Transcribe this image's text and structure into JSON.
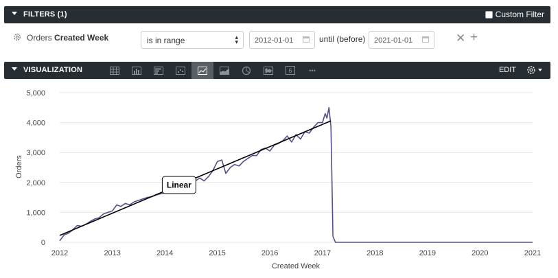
{
  "filters_bar": {
    "title": "FILTERS (1)",
    "custom_filter_label": "Custom Filter"
  },
  "filter": {
    "field_prefix": "Orders",
    "field_name": "Created Week",
    "operator": "is in range",
    "start_date": "2012-01-01",
    "until_label": "until (before)",
    "end_date": "2021-01-01"
  },
  "viz_bar": {
    "title": "VISUALIZATION",
    "edit_label": "EDIT",
    "icons": [
      "table-icon",
      "column-chart-icon",
      "bar-chart-icon",
      "scatter-chart-icon",
      "line-chart-icon",
      "area-chart-icon",
      "pie-chart-icon",
      "map-icon",
      "single-value-icon",
      "more-icon"
    ],
    "active_icon": "line-chart-icon",
    "single_value_glyph": "6",
    "more_glyph": "•••"
  },
  "colors": {
    "bar_bg": "#262d33",
    "series": "#5b4b8a",
    "trend": "#000000",
    "grid": "#e6e6e6"
  },
  "chart_data": {
    "type": "line",
    "xlabel": "Created Week",
    "ylabel": "Orders",
    "x_ticks": [
      "2012",
      "2013",
      "2014",
      "2015",
      "2016",
      "2017",
      "2018",
      "2019",
      "2020",
      "2021"
    ],
    "y_ticks": [
      "0",
      "1,000",
      "2,000",
      "3,000",
      "4,000",
      "5,000"
    ],
    "ylim": [
      0,
      5000
    ],
    "xlim": [
      "2012-01-01",
      "2021-01-01"
    ],
    "series": [
      {
        "x": [
          "2012-01-01",
          "2012-02-01",
          "2012-03-01",
          "2012-04-01",
          "2012-05-01",
          "2012-06-01",
          "2012-07-01",
          "2012-08-01",
          "2012-09-01",
          "2012-10-01",
          "2012-11-01",
          "2012-12-01",
          "2013-01-01",
          "2013-02-01",
          "2013-03-01",
          "2013-04-01",
          "2013-05-01",
          "2013-06-01",
          "2013-07-01",
          "2013-08-01",
          "2013-09-01",
          "2013-10-01",
          "2013-11-01",
          "2013-12-01",
          "2014-01-01",
          "2014-02-01",
          "2014-03-01",
          "2014-04-01",
          "2014-05-01",
          "2014-06-01",
          "2014-07-01",
          "2014-08-01",
          "2014-09-01",
          "2014-10-01",
          "2014-11-01",
          "2014-12-01",
          "2015-01-01",
          "2015-02-01",
          "2015-03-01",
          "2015-04-01",
          "2015-05-01",
          "2015-06-01",
          "2015-07-01",
          "2015-08-01",
          "2015-09-01",
          "2015-10-01",
          "2015-11-01",
          "2015-12-01",
          "2016-01-01",
          "2016-02-01",
          "2016-03-01",
          "2016-04-01",
          "2016-05-01",
          "2016-06-01",
          "2016-07-01",
          "2016-08-01",
          "2016-09-01",
          "2016-10-01",
          "2016-11-01",
          "2016-12-01",
          "2017-01-01",
          "2017-01-20",
          "2017-02-01",
          "2017-02-15",
          "2017-03-01",
          "2017-03-08",
          "2017-03-15",
          "2017-04-01",
          "2018-01-01",
          "2019-01-01",
          "2020-01-01",
          "2021-01-01"
        ],
        "y": [
          50,
          250,
          300,
          420,
          560,
          540,
          600,
          700,
          780,
          820,
          950,
          1000,
          1050,
          1250,
          1200,
          1300,
          1250,
          1350,
          1400,
          1450,
          1500,
          1520,
          1580,
          1620,
          1650,
          1750,
          1900,
          1850,
          2100,
          2000,
          1950,
          2050,
          2150,
          2050,
          2200,
          2400,
          2700,
          2750,
          2300,
          2500,
          2600,
          2550,
          2700,
          2800,
          2900,
          2900,
          3100,
          3150,
          3050,
          3250,
          3300,
          3400,
          3550,
          3350,
          3600,
          3450,
          3700,
          3650,
          3850,
          4000,
          4000,
          4300,
          4150,
          4500,
          3850,
          2000,
          200,
          0,
          0,
          0,
          0,
          0
        ]
      }
    ],
    "trendline": {
      "label": "Linear",
      "x": [
        "2012-01-01",
        "2017-03-01"
      ],
      "y": [
        230,
        4060
      ]
    }
  }
}
